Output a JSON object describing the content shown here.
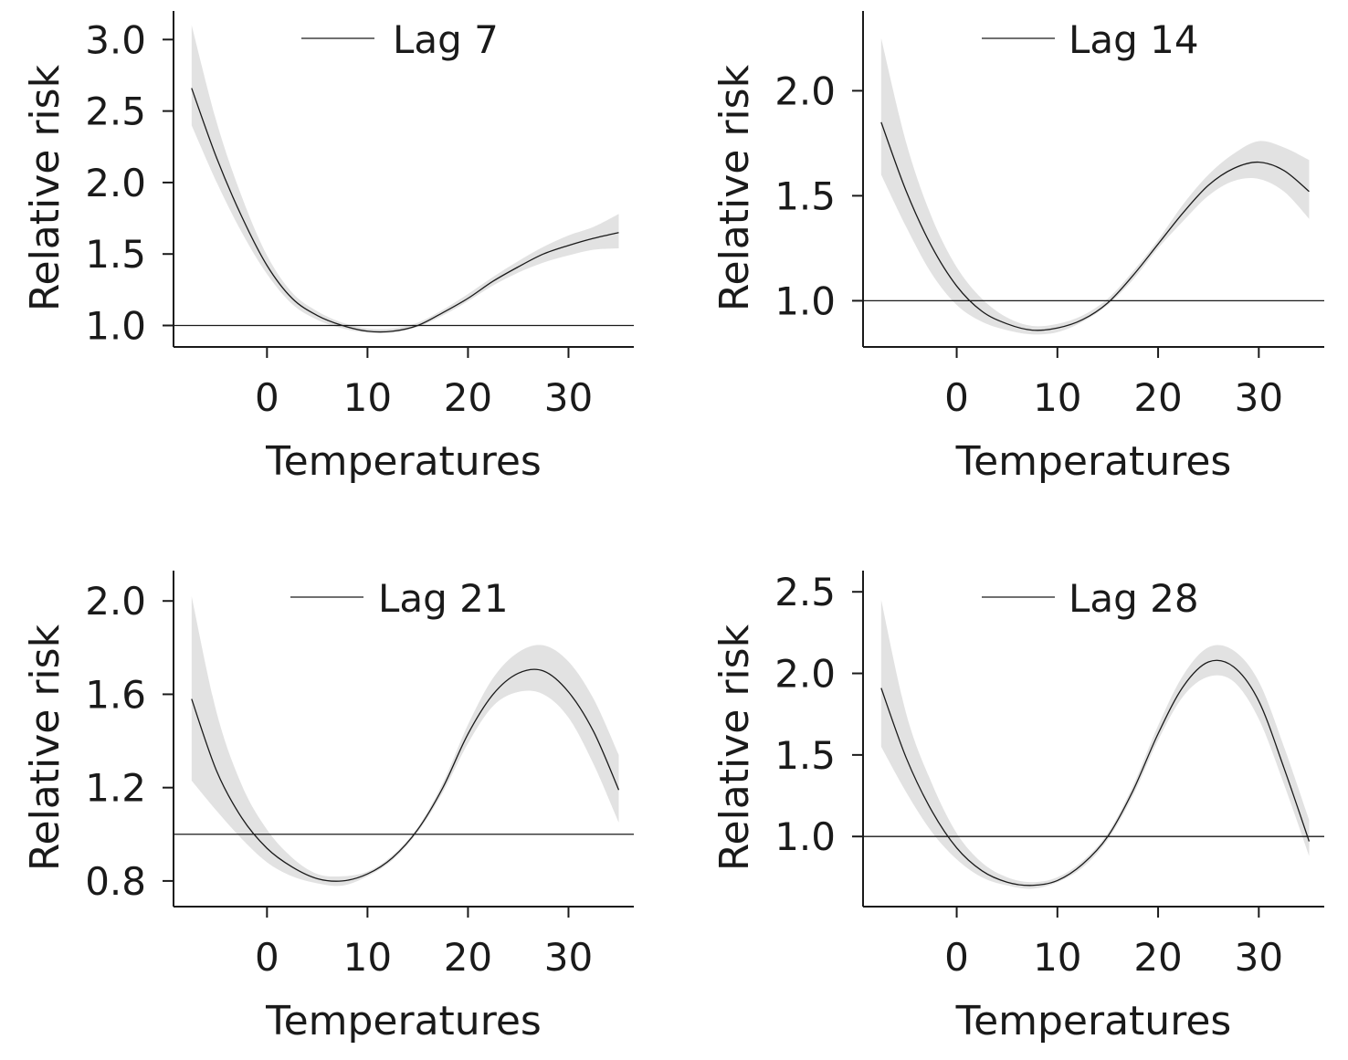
{
  "chart_data": [
    {
      "type": "line",
      "xlabel": "Temperatures",
      "ylabel": "Relative risk",
      "legend": "Lag 7",
      "legend_position": "top-center",
      "xlim": [
        -9.3,
        36.5
      ],
      "ylim": [
        0.85,
        3.2
      ],
      "xticks": [
        0,
        10,
        20,
        30
      ],
      "xtick_labels": [
        "0",
        "10",
        "20",
        "30"
      ],
      "yticks": [
        1.0,
        1.5,
        2.0,
        2.5,
        3.0
      ],
      "ytick_labels": [
        "1.0",
        "1.5",
        "2.0",
        "2.5",
        "3.0"
      ],
      "reference_line": 1.0,
      "series": [
        {
          "x": [
            -7.5,
            -5,
            -2.5,
            0,
            2.5,
            5,
            7.5,
            10,
            12.5,
            15,
            17.5,
            20,
            22.5,
            25,
            27.5,
            30,
            32.5,
            35
          ],
          "y": [
            2.66,
            2.17,
            1.76,
            1.42,
            1.19,
            1.07,
            1.0,
            0.96,
            0.96,
            1.0,
            1.09,
            1.19,
            1.31,
            1.41,
            1.5,
            1.56,
            1.61,
            1.65
          ],
          "lower": [
            2.4,
            2.0,
            1.65,
            1.36,
            1.15,
            1.04,
            0.98,
            0.95,
            0.95,
            0.99,
            1.07,
            1.17,
            1.28,
            1.37,
            1.44,
            1.49,
            1.53,
            1.54
          ],
          "upper": [
            3.1,
            2.42,
            1.9,
            1.49,
            1.23,
            1.1,
            1.02,
            0.98,
            0.98,
            1.02,
            1.11,
            1.22,
            1.34,
            1.45,
            1.55,
            1.63,
            1.69,
            1.78
          ]
        }
      ]
    },
    {
      "type": "line",
      "xlabel": "Temperatures",
      "ylabel": "Relative risk",
      "legend": "Lag 14",
      "legend_position": "top-right",
      "xlim": [
        -9.3,
        36.5
      ],
      "ylim": [
        0.78,
        2.38
      ],
      "xticks": [
        0,
        10,
        20,
        30
      ],
      "xtick_labels": [
        "0",
        "10",
        "20",
        "30"
      ],
      "yticks": [
        1.0,
        1.5,
        2.0
      ],
      "ytick_labels": [
        "1.0",
        "1.5",
        "2.0"
      ],
      "reference_line": 1.0,
      "series": [
        {
          "x": [
            -7.5,
            -5,
            -2.5,
            0,
            2.5,
            5,
            7.5,
            10,
            12.5,
            15,
            17.5,
            20,
            22.5,
            25,
            27.5,
            30,
            32.5,
            35
          ],
          "y": [
            1.85,
            1.52,
            1.26,
            1.07,
            0.95,
            0.89,
            0.86,
            0.87,
            0.91,
            0.99,
            1.12,
            1.27,
            1.42,
            1.55,
            1.63,
            1.66,
            1.62,
            1.52
          ],
          "lower": [
            1.6,
            1.35,
            1.13,
            0.98,
            0.9,
            0.86,
            0.84,
            0.85,
            0.9,
            0.98,
            1.1,
            1.25,
            1.38,
            1.5,
            1.57,
            1.58,
            1.52,
            1.39
          ],
          "upper": [
            2.25,
            1.75,
            1.4,
            1.16,
            1.01,
            0.92,
            0.88,
            0.89,
            0.93,
            1.01,
            1.14,
            1.29,
            1.46,
            1.6,
            1.7,
            1.76,
            1.73,
            1.67
          ]
        }
      ]
    },
    {
      "type": "line",
      "xlabel": "Temperatures",
      "ylabel": "Relative risk",
      "legend": "Lag 21",
      "legend_position": "top-center",
      "xlim": [
        -9.3,
        36.5
      ],
      "ylim": [
        0.69,
        2.13
      ],
      "xticks": [
        0,
        10,
        20,
        30
      ],
      "xtick_labels": [
        "0",
        "10",
        "20",
        "30"
      ],
      "yticks": [
        0.8,
        1.2,
        1.6,
        2.0
      ],
      "ytick_labels": [
        "0.8",
        "1.2",
        "1.6",
        "2.0"
      ],
      "reference_line": 1.0,
      "series": [
        {
          "x": [
            -7.5,
            -5,
            -2.5,
            0,
            2.5,
            5,
            7.5,
            10,
            12.5,
            15,
            17.5,
            20,
            22.5,
            25,
            27.5,
            30,
            32.5,
            35
          ],
          "y": [
            1.58,
            1.27,
            1.07,
            0.94,
            0.86,
            0.81,
            0.8,
            0.83,
            0.9,
            1.02,
            1.2,
            1.43,
            1.6,
            1.69,
            1.7,
            1.61,
            1.44,
            1.19
          ],
          "lower": [
            1.23,
            1.1,
            0.98,
            0.88,
            0.82,
            0.79,
            0.78,
            0.82,
            0.89,
            1.01,
            1.18,
            1.39,
            1.55,
            1.61,
            1.6,
            1.5,
            1.3,
            1.05
          ],
          "upper": [
            2.02,
            1.52,
            1.21,
            1.02,
            0.9,
            0.83,
            0.82,
            0.84,
            0.91,
            1.03,
            1.22,
            1.47,
            1.67,
            1.78,
            1.81,
            1.74,
            1.58,
            1.34
          ]
        }
      ]
    },
    {
      "type": "line",
      "xlabel": "Temperatures",
      "ylabel": "Relative risk",
      "legend": "Lag 28",
      "legend_position": "top-right",
      "xlim": [
        -9.3,
        36.5
      ],
      "ylim": [
        0.57,
        2.63
      ],
      "xticks": [
        0,
        10,
        20,
        30
      ],
      "xtick_labels": [
        "0",
        "10",
        "20",
        "30"
      ],
      "yticks": [
        1.0,
        1.5,
        2.0,
        2.5
      ],
      "ytick_labels": [
        "1.0",
        "1.5",
        "2.0",
        "2.5"
      ],
      "reference_line": 1.0,
      "series": [
        {
          "x": [
            -7.5,
            -5,
            -2.5,
            0,
            2.5,
            5,
            7.5,
            10,
            12.5,
            15,
            17.5,
            20,
            22.5,
            25,
            27.5,
            30,
            32.5,
            35
          ],
          "y": [
            1.91,
            1.48,
            1.16,
            0.93,
            0.79,
            0.72,
            0.7,
            0.73,
            0.83,
            1.0,
            1.28,
            1.63,
            1.92,
            2.07,
            2.04,
            1.83,
            1.42,
            0.97
          ],
          "lower": [
            1.55,
            1.27,
            1.03,
            0.86,
            0.75,
            0.7,
            0.68,
            0.72,
            0.81,
            0.98,
            1.25,
            1.59,
            1.86,
            1.98,
            1.95,
            1.72,
            1.32,
            0.88
          ],
          "upper": [
            2.45,
            1.75,
            1.33,
            1.02,
            0.84,
            0.75,
            0.72,
            0.75,
            0.85,
            1.02,
            1.31,
            1.68,
            1.99,
            2.16,
            2.14,
            1.95,
            1.55,
            1.1
          ]
        }
      ]
    }
  ]
}
